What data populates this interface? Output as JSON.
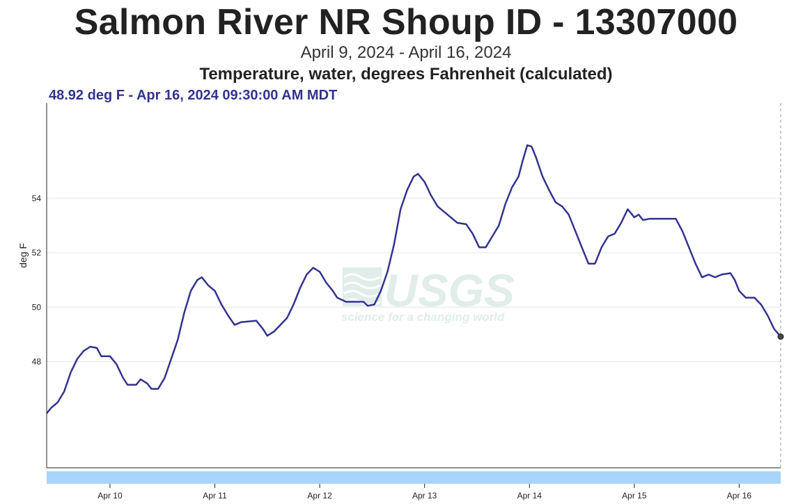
{
  "header": {
    "title": "Salmon River NR Shoup ID - 13307000",
    "subtitle": "April 9, 2024 - April 16, 2024",
    "parameter": "Temperature, water, degrees Fahrenheit (calculated)",
    "readout": "48.92 deg F - Apr 16, 2024 09:30:00 AM MDT"
  },
  "watermark": {
    "logo_text": "USGS",
    "tagline": "science for a changing world"
  },
  "colors": {
    "series": "#33338f",
    "grid": "#e6e6e6",
    "brush": "#a9d4fa",
    "watermark": "#c8e0d8"
  },
  "chart_data": {
    "type": "line",
    "title": "Salmon River NR Shoup ID - 13307000",
    "subtitle": "April 9, 2024 - April 16, 2024",
    "ylabel": "deg F",
    "xlabel": "",
    "ylim": [
      44.1,
      57.5
    ],
    "xlim": [
      "2024-04-09 09:30",
      "2024-04-16 09:30"
    ],
    "y_ticks": [
      48,
      50,
      52,
      54
    ],
    "y_tick_labels": [
      "48",
      "50",
      "52",
      "54"
    ],
    "x_ticks": [
      "2024-04-10 00:00",
      "2024-04-11 00:00",
      "2024-04-12 00:00",
      "2024-04-13 00:00",
      "2024-04-14 00:00",
      "2024-04-15 00:00",
      "2024-04-16 00:00"
    ],
    "x_tick_labels": [
      "Apr 10",
      "Apr 11",
      "Apr 12",
      "Apr 13",
      "Apr 14",
      "Apr 15",
      "Apr 16"
    ],
    "grid": true,
    "series": [
      {
        "values": [
          [
            "2024-04-09 09:30",
            46.1
          ],
          [
            "2024-04-09 10:30",
            46.3
          ],
          [
            "2024-04-09 12:00",
            46.5
          ],
          [
            "2024-04-09 13:30",
            46.9
          ],
          [
            "2024-04-09 15:00",
            47.6
          ],
          [
            "2024-04-09 16:30",
            48.1
          ],
          [
            "2024-04-09 18:00",
            48.4
          ],
          [
            "2024-04-09 19:30",
            48.55
          ],
          [
            "2024-04-09 21:00",
            48.5
          ],
          [
            "2024-04-09 22:00",
            48.2
          ],
          [
            "2024-04-10 00:00",
            48.2
          ],
          [
            "2024-04-10 01:30",
            47.9
          ],
          [
            "2024-04-10 03:00",
            47.4
          ],
          [
            "2024-04-10 04:00",
            47.15
          ],
          [
            "2024-04-10 06:00",
            47.15
          ],
          [
            "2024-04-10 07:00",
            47.35
          ],
          [
            "2024-04-10 08:30",
            47.2
          ],
          [
            "2024-04-10 09:30",
            47.0
          ],
          [
            "2024-04-10 11:00",
            47.0
          ],
          [
            "2024-04-10 12:30",
            47.4
          ],
          [
            "2024-04-10 14:00",
            48.1
          ],
          [
            "2024-04-10 15:30",
            48.8
          ],
          [
            "2024-04-10 17:00",
            49.8
          ],
          [
            "2024-04-10 18:30",
            50.6
          ],
          [
            "2024-04-10 20:00",
            51.0
          ],
          [
            "2024-04-10 21:00",
            51.1
          ],
          [
            "2024-04-10 22:30",
            50.8
          ],
          [
            "2024-04-11 00:00",
            50.6
          ],
          [
            "2024-04-11 01:30",
            50.1
          ],
          [
            "2024-04-11 03:00",
            49.7
          ],
          [
            "2024-04-11 04:30",
            49.35
          ],
          [
            "2024-04-11 06:00",
            49.45
          ],
          [
            "2024-04-11 09:30",
            49.5
          ],
          [
            "2024-04-11 11:00",
            49.2
          ],
          [
            "2024-04-11 12:00",
            48.95
          ],
          [
            "2024-04-11 13:30",
            49.1
          ],
          [
            "2024-04-11 15:00",
            49.35
          ],
          [
            "2024-04-11 16:30",
            49.6
          ],
          [
            "2024-04-11 18:00",
            50.1
          ],
          [
            "2024-04-11 19:30",
            50.7
          ],
          [
            "2024-04-11 21:00",
            51.2
          ],
          [
            "2024-04-11 22:30",
            51.45
          ],
          [
            "2024-04-12 00:00",
            51.3
          ],
          [
            "2024-04-12 01:30",
            50.9
          ],
          [
            "2024-04-12 03:00",
            50.6
          ],
          [
            "2024-04-12 04:00",
            50.35
          ],
          [
            "2024-04-12 06:00",
            50.2
          ],
          [
            "2024-04-12 08:00",
            50.2
          ],
          [
            "2024-04-12 10:00",
            50.2
          ],
          [
            "2024-04-12 11:00",
            50.05
          ],
          [
            "2024-04-12 12:30",
            50.1
          ],
          [
            "2024-04-12 14:00",
            50.6
          ],
          [
            "2024-04-12 15:30",
            51.3
          ],
          [
            "2024-04-12 17:00",
            52.3
          ],
          [
            "2024-04-12 18:30",
            53.6
          ],
          [
            "2024-04-12 20:00",
            54.3
          ],
          [
            "2024-04-12 21:30",
            54.8
          ],
          [
            "2024-04-12 22:30",
            54.9
          ],
          [
            "2024-04-13 00:00",
            54.6
          ],
          [
            "2024-04-13 01:30",
            54.1
          ],
          [
            "2024-04-13 03:00",
            53.7
          ],
          [
            "2024-04-13 04:30",
            53.5
          ],
          [
            "2024-04-13 06:00",
            53.3
          ],
          [
            "2024-04-13 07:30",
            53.1
          ],
          [
            "2024-04-13 09:30",
            53.05
          ],
          [
            "2024-04-13 11:00",
            52.7
          ],
          [
            "2024-04-13 12:30",
            52.2
          ],
          [
            "2024-04-13 14:00",
            52.2
          ],
          [
            "2024-04-13 15:30",
            52.6
          ],
          [
            "2024-04-13 17:00",
            53.0
          ],
          [
            "2024-04-13 18:30",
            53.8
          ],
          [
            "2024-04-13 20:00",
            54.4
          ],
          [
            "2024-04-13 21:30",
            54.8
          ],
          [
            "2024-04-13 22:30",
            55.4
          ],
          [
            "2024-04-13 23:30",
            55.95
          ],
          [
            "2024-04-14 00:30",
            55.9
          ],
          [
            "2024-04-14 01:30",
            55.5
          ],
          [
            "2024-04-14 03:00",
            54.8
          ],
          [
            "2024-04-14 04:30",
            54.3
          ],
          [
            "2024-04-14 06:00",
            53.85
          ],
          [
            "2024-04-14 07:30",
            53.7
          ],
          [
            "2024-04-14 09:00",
            53.4
          ],
          [
            "2024-04-14 10:30",
            52.8
          ],
          [
            "2024-04-14 12:00",
            52.2
          ],
          [
            "2024-04-14 13:30",
            51.6
          ],
          [
            "2024-04-14 15:00",
            51.6
          ],
          [
            "2024-04-14 16:30",
            52.2
          ],
          [
            "2024-04-14 18:00",
            52.6
          ],
          [
            "2024-04-14 19:30",
            52.7
          ],
          [
            "2024-04-14 21:00",
            53.1
          ],
          [
            "2024-04-14 22:30",
            53.6
          ],
          [
            "2024-04-15 00:00",
            53.3
          ],
          [
            "2024-04-15 01:00",
            53.4
          ],
          [
            "2024-04-15 02:00",
            53.2
          ],
          [
            "2024-04-15 03:30",
            53.25
          ],
          [
            "2024-04-15 09:30",
            53.25
          ],
          [
            "2024-04-15 11:00",
            52.8
          ],
          [
            "2024-04-15 12:30",
            52.2
          ],
          [
            "2024-04-15 14:00",
            51.6
          ],
          [
            "2024-04-15 15:30",
            51.1
          ],
          [
            "2024-04-15 17:00",
            51.2
          ],
          [
            "2024-04-15 18:30",
            51.1
          ],
          [
            "2024-04-15 20:00",
            51.2
          ],
          [
            "2024-04-15 22:00",
            51.25
          ],
          [
            "2024-04-15 23:00",
            51.0
          ],
          [
            "2024-04-16 00:00",
            50.6
          ],
          [
            "2024-04-16 01:30",
            50.35
          ],
          [
            "2024-04-16 03:30",
            50.35
          ],
          [
            "2024-04-16 05:00",
            50.1
          ],
          [
            "2024-04-16 06:30",
            49.7
          ],
          [
            "2024-04-16 08:00",
            49.2
          ],
          [
            "2024-04-16 09:30",
            48.92
          ]
        ]
      }
    ]
  }
}
